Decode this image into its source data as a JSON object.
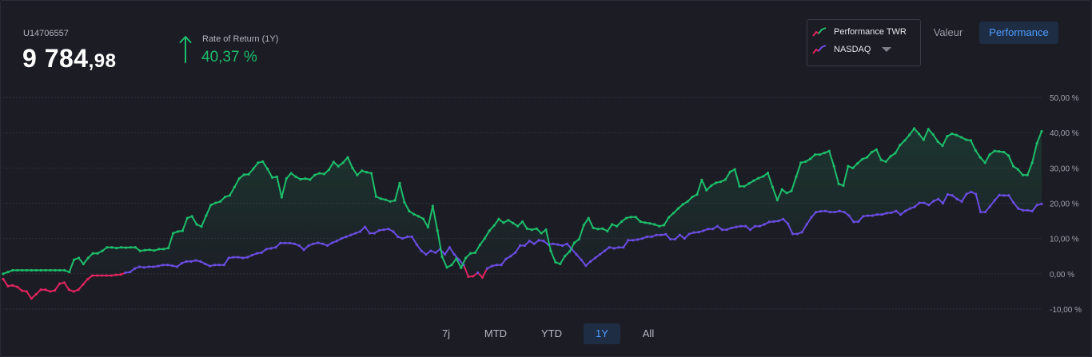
{
  "account": {
    "id": "U14706557",
    "balance_main": "9 784",
    "balance_cents": ",98"
  },
  "rate_of_return": {
    "label": "Rate of Return (1Y)",
    "value": "40,37 %",
    "direction": "up",
    "color": "#1dbd6a"
  },
  "legend": {
    "items": [
      {
        "label": "Performance TWR",
        "icon": "line-chart-icon",
        "colors": [
          "#e0245e",
          "#1dbd6a"
        ]
      },
      {
        "label": "NASDAQ",
        "icon": "line-chart-icon",
        "colors": [
          "#e0245e",
          "#6a4ce0"
        ]
      }
    ]
  },
  "view_tabs": [
    {
      "label": "Valeur",
      "active": false
    },
    {
      "label": "Performance",
      "active": true
    }
  ],
  "range_tabs": [
    {
      "label": "7j",
      "active": false
    },
    {
      "label": "MTD",
      "active": false
    },
    {
      "label": "YTD",
      "active": false
    },
    {
      "label": "1Y",
      "active": true
    },
    {
      "label": "All",
      "active": false
    }
  ],
  "chart_data": {
    "type": "line",
    "ylim": [
      -10,
      50
    ],
    "y_ticks": [
      50,
      40,
      30,
      20,
      10,
      0,
      -10
    ],
    "y_tick_labels": [
      "50,00 %",
      "40,00 %",
      "30,00 %",
      "20,00 %",
      "10,00 %",
      "0,00 %",
      "-10,00 %"
    ],
    "grid": true,
    "colors": {
      "negative": "#e0245e",
      "performance": "#1dbd6a",
      "nasdaq": "#6a4ce0"
    },
    "series": [
      {
        "name": "Performance TWR",
        "values": [
          0,
          0.5,
          1,
          1,
          1,
          1,
          1,
          1,
          1,
          1,
          1,
          1,
          1,
          1,
          0.5,
          4,
          4.5,
          2.8,
          4.5,
          5.8,
          5.8,
          6.5,
          7.5,
          7.5,
          7.3,
          7.5,
          7.4,
          7.5,
          7.5,
          6.5,
          6.7,
          6.8,
          6.6,
          7,
          7,
          7.3,
          11.5,
          12,
          12.2,
          15.8,
          16.3,
          14,
          13.4,
          16.5,
          19.5,
          20.1,
          20.5,
          21.8,
          22.2,
          24.6,
          27,
          28.1,
          28.2,
          29.8,
          31.5,
          31.8,
          29.7,
          27.3,
          27.5,
          21.7,
          27,
          28.5,
          27.5,
          26.8,
          27,
          26.7,
          28,
          28.5,
          28.3,
          29.5,
          31.7,
          30.5,
          31.5,
          33,
          30,
          28,
          29.2,
          28.8,
          28.5,
          21.9,
          21.3,
          21,
          20.5,
          20.8,
          25.7,
          20.3,
          17.8,
          16.9,
          16.3,
          15.6,
          13.2,
          19.2,
          12.3,
          4.8,
          1.8,
          2.5,
          4.3,
          1.7,
          4.5,
          5.8,
          6,
          8.2,
          10,
          12.2,
          13.7,
          15.5,
          14.5,
          15.2,
          14.4,
          13.5,
          14.8,
          12.8,
          12.5,
          12.8,
          11.5,
          12.5,
          6.5,
          3.3,
          2.8,
          5,
          6.3,
          8.8,
          9.8,
          13.8,
          15.8,
          13,
          12.7,
          12.8,
          12.1,
          14,
          13.5,
          14.8,
          15.8,
          16.1,
          16.1,
          14.8,
          14.5,
          14.3,
          14,
          13.5,
          13.8,
          16,
          17.2,
          18.5,
          19.7,
          20.5,
          21.8,
          22.5,
          26.6,
          23.7,
          25,
          25.8,
          26.1,
          26.7,
          28.9,
          29.6,
          24.8,
          24.8,
          25.6,
          26.4,
          27.1,
          27.6,
          28.6,
          24.6,
          20.9,
          23.9,
          22.9,
          23.5,
          27.5,
          31.5,
          31.8,
          32.6,
          33.8,
          33.8,
          34.3,
          34.8,
          30.5,
          25.5,
          25,
          30.5,
          30,
          31.3,
          32.5,
          33,
          34.5,
          35.2,
          32.3,
          31.8,
          33.3,
          34.2,
          36.5,
          37.8,
          39.4,
          41.2,
          39.7,
          38,
          41,
          39.5,
          37.5,
          36.3,
          39,
          39.7,
          39.3,
          38.7,
          38,
          37.8,
          35,
          33,
          31.5,
          33.8,
          34.8,
          34.7,
          34.5,
          33.5,
          30.5,
          29.6,
          28,
          28,
          31.5,
          37,
          40.37
        ]
      },
      {
        "name": "NASDAQ",
        "values": [
          -1.5,
          -3.5,
          -3.3,
          -3.7,
          -4.8,
          -5,
          -7,
          -5.8,
          -4.5,
          -4.5,
          -5,
          -4.7,
          -2.8,
          -2.5,
          -4.5,
          -5,
          -4.5,
          -3,
          -1.5,
          -0.5,
          -0.5,
          -0.5,
          -0.5,
          -0.5,
          -0.3,
          -0.2,
          0.3,
          0.5,
          1.5,
          2,
          1.8,
          2,
          2,
          2.2,
          2.5,
          2.5,
          2.3,
          2,
          3,
          3.5,
          3.5,
          3.8,
          3.5,
          2.8,
          2.2,
          2.5,
          2.5,
          2.5,
          4.5,
          4.7,
          4.7,
          4.5,
          4.7,
          5.3,
          5.8,
          6,
          7,
          7.2,
          7.5,
          8.7,
          8.7,
          8.7,
          8.5,
          8,
          6.8,
          8,
          8.5,
          8.8,
          8.5,
          8,
          8.8,
          9.3,
          10,
          10.5,
          11,
          11.5,
          12,
          13.3,
          11.5,
          11.5,
          12.3,
          12.5,
          12.7,
          12,
          10.5,
          10,
          10.5,
          10.5,
          8.3,
          6.5,
          5.5,
          6.5,
          6,
          7,
          5.5,
          7.5,
          5.5,
          4,
          2.5,
          -0.8,
          -0.7,
          0.3,
          -1,
          1.5,
          2.2,
          2.5,
          2.5,
          4.2,
          5,
          6,
          8,
          8,
          9.3,
          8.5,
          9.5,
          9.3,
          8.3,
          8.5,
          8.3,
          8,
          8.5,
          7,
          5.5,
          4,
          2.3,
          3.5,
          4.5,
          5.5,
          6.5,
          7.5,
          7.2,
          7.5,
          7.5,
          9.5,
          9.5,
          9.7,
          10,
          10.5,
          10.5,
          11,
          11,
          11.2,
          9.8,
          9.8,
          11,
          10,
          11.3,
          11.7,
          11.8,
          12.2,
          12.7,
          12.7,
          13.5,
          12.5,
          12.5,
          13,
          13.3,
          13.5,
          13.5,
          12.5,
          13.5,
          13.5,
          14,
          14.7,
          14.8,
          15,
          15.5,
          14.2,
          11.3,
          11.3,
          11.8,
          14,
          16,
          17.5,
          17.7,
          17.8,
          17.5,
          17.5,
          17.8,
          17.5,
          16.5,
          14.7,
          14.8,
          16.3,
          16.5,
          16.5,
          16.8,
          16.8,
          17.2,
          17.3,
          17.8,
          16.8,
          17.8,
          18.5,
          19,
          20.1,
          20.1,
          19.5,
          20.6,
          21.2,
          20,
          22.5,
          22.2,
          21.2,
          20.5,
          22.6,
          23.2,
          22.6,
          17.5,
          17.5,
          19.1,
          20.8,
          22.3,
          22.2,
          22.2,
          20.2,
          18.5,
          18,
          18,
          17.8,
          19.5,
          19.8
        ]
      }
    ]
  }
}
